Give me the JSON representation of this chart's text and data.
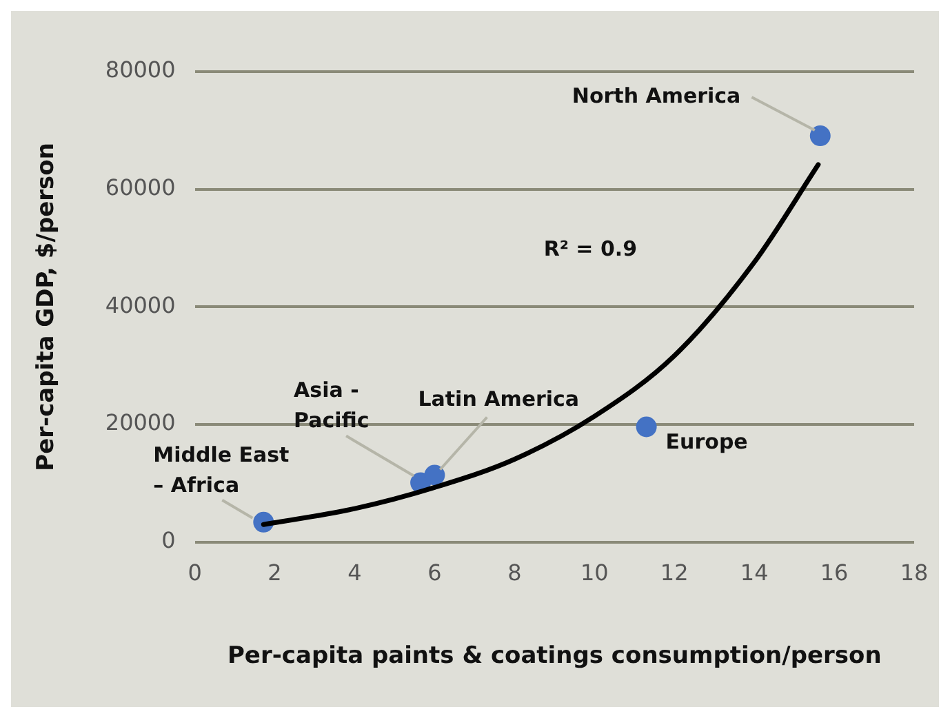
{
  "chart_data": {
    "type": "scatter",
    "xlabel": "Per-capita paints & coatings consumption/person",
    "ylabel": "Per-capita GDP, $/person",
    "xlim": [
      0,
      18
    ],
    "xticks": [
      0,
      2,
      4,
      6,
      8,
      10,
      12,
      14,
      16,
      18
    ],
    "ylim": [
      0,
      80000
    ],
    "yticks": [
      0,
      20000,
      40000,
      60000,
      80000
    ],
    "grid": "y",
    "legend": false,
    "marker": "circle",
    "series": [
      {
        "color": "#4472c4",
        "x": [
          1.72,
          5.65,
          6.0,
          11.3,
          15.65
        ],
        "values": [
          3400,
          10100,
          11400,
          19600,
          69100
        ]
      },
      {
        "type": "line",
        "color": "#000000",
        "marker": "none",
        "x": [
          1.72,
          4,
          6,
          8,
          10,
          12,
          14,
          15.6
        ],
        "values": [
          3000,
          5700,
          9300,
          14100,
          21400,
          31700,
          47600,
          64200
        ]
      }
    ],
    "annotations": [
      {
        "text": "Middle East\n– Africa",
        "x": 1.72,
        "y": 3400
      },
      {
        "text": "Asia -\nPacific",
        "x": 5.65,
        "y": 10100
      },
      {
        "text": "Latin America",
        "x": 6.0,
        "y": 11400
      },
      {
        "text": "Europe",
        "x": 11.3,
        "y": 19600
      },
      {
        "text": "North America",
        "x": 15.65,
        "y": 69100
      },
      "R² = 0.9"
    ]
  }
}
